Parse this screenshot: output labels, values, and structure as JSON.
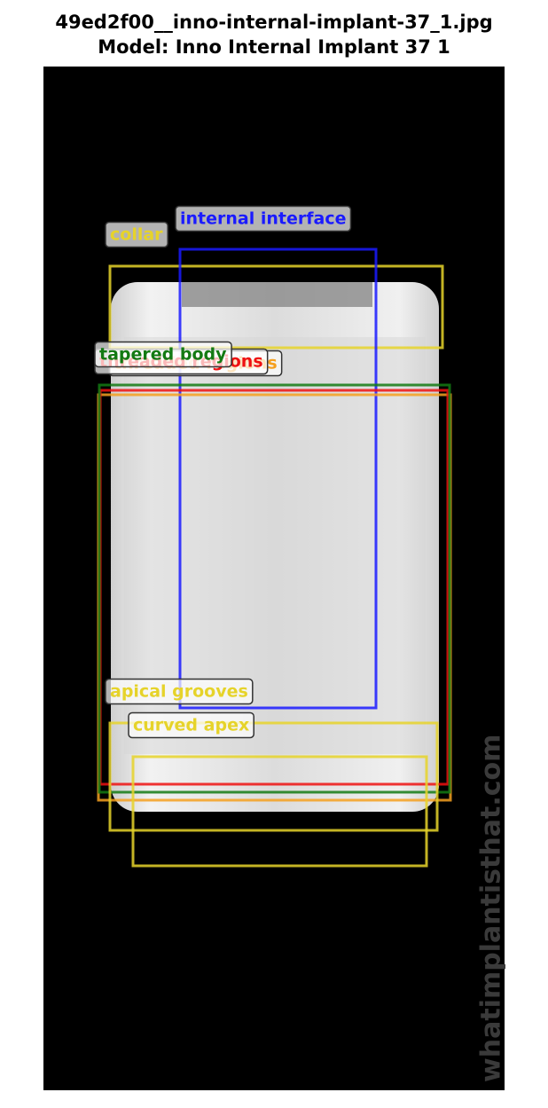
{
  "header": {
    "title": "49ed2f00__inno-internal-implant-37_1.jpg",
    "subtitle": "Model: Inno Internal Implant 37 1"
  },
  "annotations": [
    {
      "label": "collar",
      "color": "#e6d32a"
    },
    {
      "label": "internal interface",
      "color": "#1a1aff"
    },
    {
      "label": "threaded regions",
      "color": "#f5a020"
    },
    {
      "label": "threaded regions",
      "color": "#ee1111"
    },
    {
      "label": "tapered body",
      "color": "#137a13"
    },
    {
      "label": "apical grooves",
      "color": "#e6d32a"
    },
    {
      "label": "curved apex",
      "color": "#e6d32a"
    }
  ],
  "watermark": "whatimplantisthat.com"
}
